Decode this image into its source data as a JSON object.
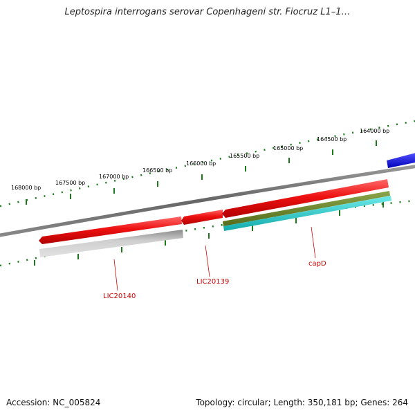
{
  "title": "Leptospira interrogans serovar Copenhageni str. Fiocruz L1–1…",
  "ruler": {
    "labels": [
      "168000 bp",
      "167500 bp",
      "167000 bp",
      "166500 bp",
      "166000 bp",
      "165500 bp",
      "165000 bp",
      "164500 bp",
      "164000 bp"
    ],
    "tick_color": "#1a7a1a"
  },
  "genes": [
    {
      "label": "LIC20140",
      "color": "#ee1111"
    },
    {
      "label": "LIC20139",
      "color": "#ee1111"
    },
    {
      "label": "capD",
      "color": "#ee1111"
    }
  ],
  "colors": {
    "backbone": "#777777",
    "gene_red": "#ee1111",
    "gene_grey": "#b0b0b0",
    "gene_olive": "#6b8e23",
    "gene_cyan": "#22cccc",
    "gene_blue": "#1a1aee",
    "label_red": "#cc0000"
  },
  "footer": {
    "accession": "Accession: NC_005824",
    "summary": "Topology: circular; Length: 350,181 bp; Genes: 264"
  }
}
